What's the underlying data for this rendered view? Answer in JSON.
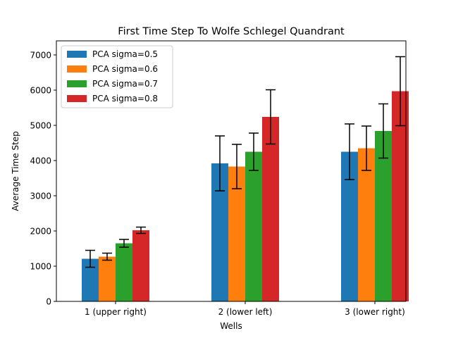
{
  "chart_data": {
    "type": "bar",
    "title": "First Time Step To Wolfe Schlegel Quandrant",
    "xlabel": "Wells",
    "ylabel": "Average Time Step",
    "categories": [
      "1 (upper right)",
      "2 (lower left)",
      "3 (lower right)"
    ],
    "ylim": [
      0,
      7400
    ],
    "yticks": [
      0,
      1000,
      2000,
      3000,
      4000,
      5000,
      6000,
      7000
    ],
    "legend_position": "top-left",
    "grid": false,
    "series": [
      {
        "name": "PCA sigma=0.5",
        "color": "#1f77b4",
        "values": [
          1210,
          3920,
          4250
        ],
        "errors": [
          240,
          780,
          790
        ]
      },
      {
        "name": "PCA sigma=0.6",
        "color": "#ff7f0e",
        "values": [
          1270,
          3830,
          4350
        ],
        "errors": [
          100,
          630,
          630
        ]
      },
      {
        "name": "PCA sigma=0.7",
        "color": "#2ca02c",
        "values": [
          1650,
          4250,
          4840
        ],
        "errors": [
          110,
          530,
          770
        ]
      },
      {
        "name": "PCA sigma=0.8",
        "color": "#d62728",
        "values": [
          2020,
          5240,
          5970
        ],
        "errors": [
          90,
          770,
          980
        ]
      }
    ]
  }
}
